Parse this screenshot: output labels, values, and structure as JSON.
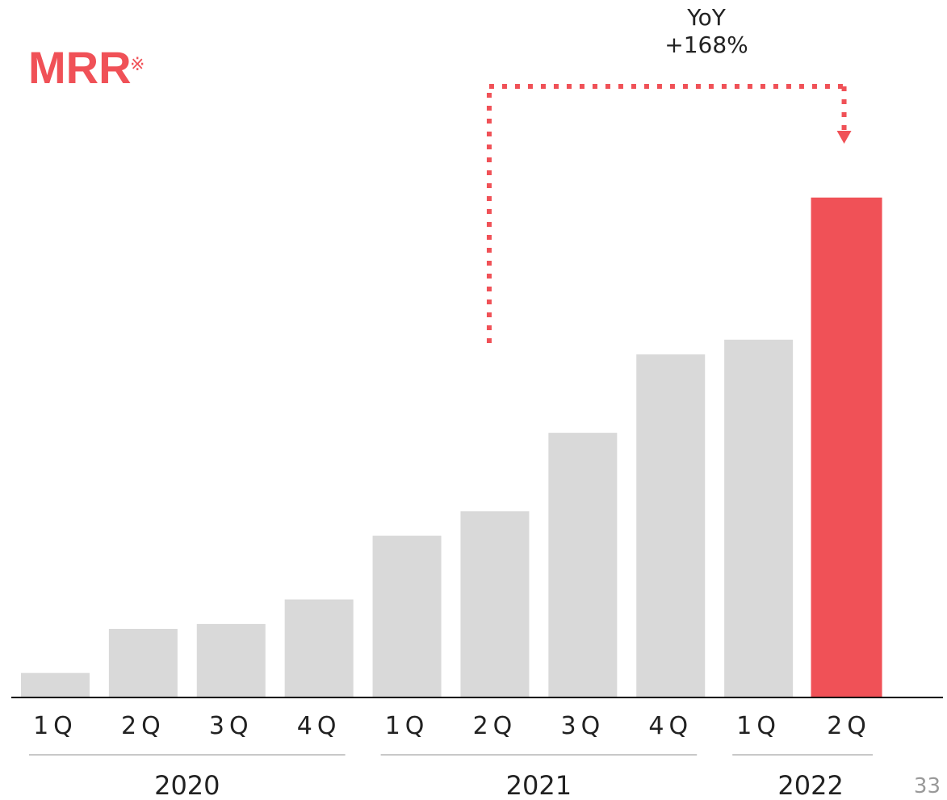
{
  "title": "MRR",
  "title_mark": "※",
  "annotation": {
    "line1": "YoY",
    "line2": "+168%"
  },
  "page_number": "33",
  "colors": {
    "accent": "#f05157",
    "bar": "#d9d9d9",
    "axis": "#000000",
    "group_line": "#c8c8c8"
  },
  "chart_data": {
    "type": "bar",
    "title": "MRR",
    "categories": [
      "1Q",
      "2Q",
      "3Q",
      "4Q",
      "1Q",
      "2Q",
      "3Q",
      "4Q",
      "1Q",
      "2Q"
    ],
    "groups": [
      {
        "label": "2020",
        "categories": [
          "1Q",
          "2Q",
          "3Q",
          "4Q"
        ]
      },
      {
        "label": "2021",
        "categories": [
          "1Q",
          "2Q",
          "3Q",
          "4Q"
        ]
      },
      {
        "label": "2022",
        "categories": [
          "1Q",
          "2Q"
        ]
      }
    ],
    "values": [
      5,
      14,
      15,
      20,
      33,
      38,
      54,
      70,
      73,
      102
    ],
    "highlight_index": 9,
    "ylim": [
      0,
      112
    ],
    "grid": false,
    "annotation": "YoY +168%"
  }
}
